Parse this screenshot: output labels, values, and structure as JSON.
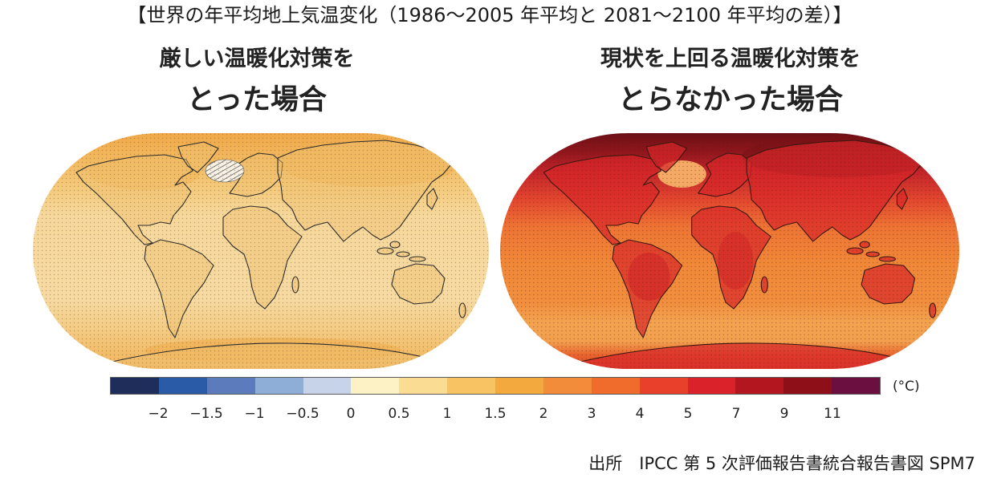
{
  "title": "【世界の年平均地上気温変化（1986～2005 年平均と 2081～2100 年平均の差）】",
  "panels": {
    "left": {
      "line1": "厳しい温暖化対策を",
      "line2": "とった場合"
    },
    "right": {
      "line1": "現状を上回る温暖化対策を",
      "line2": "とらなかった場合"
    }
  },
  "colorbar": {
    "colors": [
      "#1f2d5a",
      "#2a5ba6",
      "#5b7bbd",
      "#8eaed8",
      "#c6d3e9",
      "#fdf1c6",
      "#fbdc93",
      "#f8c463",
      "#f4a93e",
      "#f28c3b",
      "#ef6c2c",
      "#e8402b",
      "#d92229",
      "#b4161f",
      "#8f0f18",
      "#6a0f40"
    ],
    "ticks": [
      "−2",
      "−1.5",
      "−1",
      "−0.5",
      "0",
      "0.5",
      "1",
      "1.5",
      "2",
      "3",
      "4",
      "5",
      "7",
      "9",
      "11"
    ],
    "unit": "(°C)"
  },
  "source": "出所　IPCC 第 5 次評価報告書統合報告書図 SPM7"
}
